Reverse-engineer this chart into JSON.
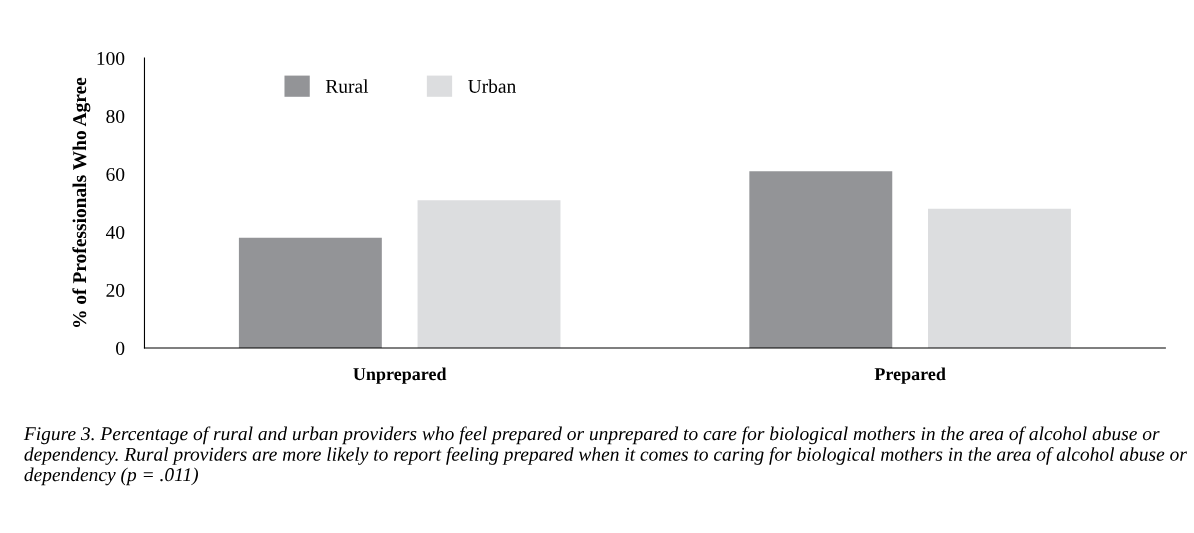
{
  "chart_data": {
    "type": "bar",
    "ylabel": "% of Professionals Who Agree",
    "categories": [
      "Unprepared",
      "Prepared"
    ],
    "series": [
      {
        "name": "Rural",
        "color": "#939497",
        "values": [
          38,
          61
        ]
      },
      {
        "name": "Urban",
        "color": "#dcdddf",
        "values": [
          51,
          48
        ]
      }
    ],
    "ylim": [
      0,
      100
    ],
    "yticks": [
      0,
      20,
      40,
      60,
      80,
      100
    ],
    "grid": false,
    "legend": "top left",
    "annotations": [
      "Figure 3. Percentage of rural and urban providers who feel prepared or unprepared to care for biological mothers in the area of alcohol abuse or dependency. Rural providers are more likely to report feeling prepared when it comes to caring for biological mothers in the area of alcohol abuse or dependency (p = .011)"
    ]
  }
}
